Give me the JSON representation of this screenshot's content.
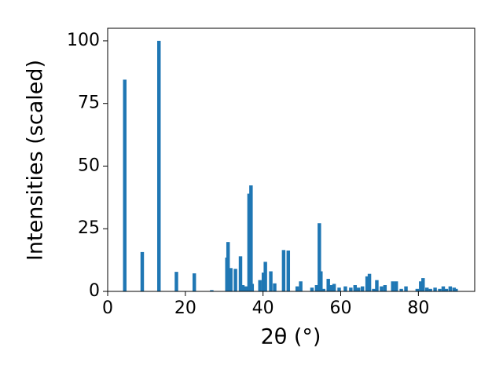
{
  "chart_data": {
    "type": "bar",
    "xlabel": "2θ (°)",
    "ylabel": "Intensities (scaled)",
    "color": "#1f77b4",
    "x": [
      4.4,
      8.9,
      13.2,
      17.7,
      22.3,
      26.8,
      30.7,
      31.0,
      31.7,
      32.9,
      34.2,
      34.8,
      35.6,
      36.4,
      36.9,
      37.2,
      39.2,
      40.1,
      40.6,
      42.0,
      43.0,
      45.3,
      46.5,
      48.8,
      49.7,
      52.6,
      53.8,
      54.5,
      54.9,
      55.6,
      56.8,
      57.5,
      58.3,
      59.6,
      61.2,
      62.6,
      63.7,
      64.6,
      65.6,
      66.8,
      67.4,
      68.5,
      69.3,
      70.5,
      71.4,
      73.4,
      74.3,
      75.6,
      76.8,
      79.7,
      80.6,
      81.2,
      82.2,
      83.1,
      84.3,
      85.5,
      86.4,
      87.2,
      88.2,
      89.2,
      89.7
    ],
    "values": [
      84.5,
      15.7,
      100,
      7.8,
      7.2,
      0.5,
      13.5,
      19.7,
      9.3,
      9,
      14,
      2.5,
      2,
      39,
      42.3,
      3,
      4.5,
      7.5,
      11.8,
      8,
      3.2,
      16.5,
      16.3,
      2,
      4,
      1.5,
      2.5,
      27.2,
      8,
      1,
      5,
      2.5,
      3,
      1.5,
      2,
      1.5,
      2.5,
      1.5,
      2,
      6,
      7,
      1,
      4.5,
      2,
      2.5,
      4,
      4,
      1,
      2,
      1,
      4,
      5.3,
      1.5,
      1,
      1.5,
      1,
      2,
      1,
      2,
      1.5,
      1
    ],
    "xlim": [
      0,
      94.5
    ],
    "ylim": [
      0,
      105
    ],
    "xticks": [
      0,
      20,
      40,
      60,
      80
    ],
    "yticks": [
      0,
      25,
      50,
      75,
      100
    ],
    "grid": false
  }
}
